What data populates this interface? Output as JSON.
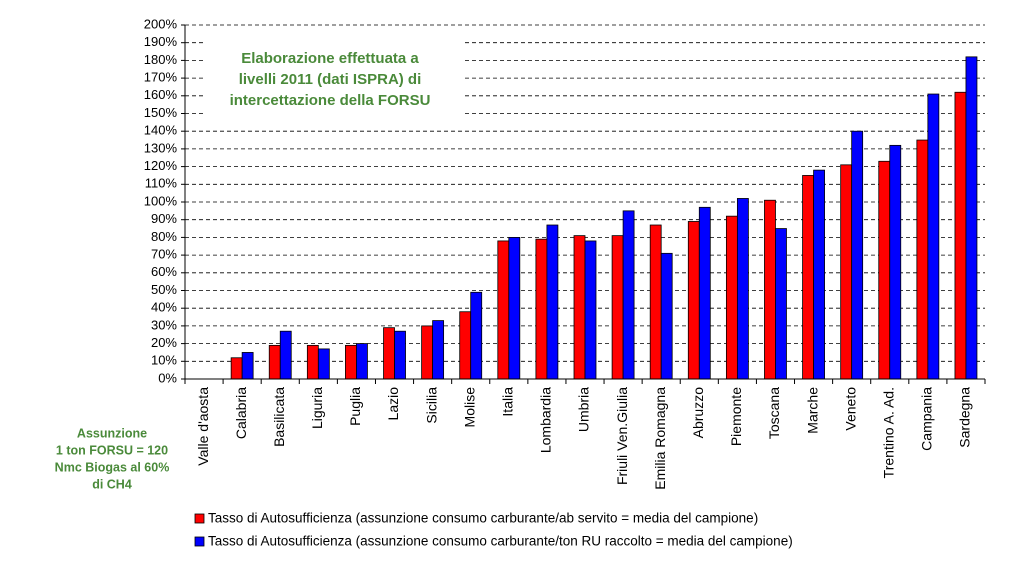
{
  "chart_data": {
    "type": "bar",
    "annotation": [
      "Elaborazione effettuata a",
      "livelli 2011 (dati ISPRA) di",
      "intercettazione della FORSU"
    ],
    "note": [
      "Assunzione",
      "1 ton FORSU = 120",
      "Nmc Biogas al 60%",
      "di CH4"
    ],
    "categories": [
      "Valle d'aosta",
      "Calabria",
      "Basilicata",
      "Liguria",
      "Puglia",
      "Lazio",
      "Sicilia",
      "Molise",
      "Italia",
      "Lombardia",
      "Umbria",
      "Friuli Ven.Giulia",
      "Emilia Romagna",
      "Abruzzo",
      "Piemonte",
      "Toscana",
      "Marche",
      "Veneto",
      "Trentino A. Ad.",
      "Campania",
      "Sardegna"
    ],
    "series": [
      {
        "name": "Tasso di Autosufficienza (assunzione consumo carburante/ab servito = media del campione)",
        "color": "#ff0000",
        "values": [
          0,
          12,
          19,
          19,
          19,
          29,
          30,
          38,
          78,
          79,
          81,
          81,
          87,
          89,
          92,
          101,
          115,
          121,
          123,
          135,
          162
        ]
      },
      {
        "name": "Tasso di Autosufficienza  (assunzione consumo carburante/ton RU raccolto = media del campione)",
        "color": "#0000ff",
        "values": [
          0,
          15,
          27,
          17,
          20,
          27,
          33,
          49,
          80,
          87,
          78,
          95,
          71,
          97,
          102,
          85,
          118,
          140,
          132,
          161,
          182
        ]
      }
    ],
    "ylim": [
      0,
      200
    ],
    "yticks": [
      {
        "value": 0,
        "label": "0%"
      },
      {
        "value": 10,
        "label": "10%"
      },
      {
        "value": 20,
        "label": "20%"
      },
      {
        "value": 30,
        "label": "30%"
      },
      {
        "value": 40,
        "label": "40%"
      },
      {
        "value": 50,
        "label": "50%"
      },
      {
        "value": 60,
        "label": "60%"
      },
      {
        "value": 70,
        "label": "70%"
      },
      {
        "value": 80,
        "label": "80%"
      },
      {
        "value": 90,
        "label": "90%"
      },
      {
        "value": 100,
        "label": "100%"
      },
      {
        "value": 110,
        "label": "110%"
      },
      {
        "value": 120,
        "label": "120%"
      },
      {
        "value": 130,
        "label": "130%"
      },
      {
        "value": 140,
        "label": "140%"
      },
      {
        "value": 150,
        "label": "150%"
      },
      {
        "value": 160,
        "label": "160%"
      },
      {
        "value": 170,
        "label": "170%"
      },
      {
        "value": 180,
        "label": "180%"
      },
      {
        "value": 190,
        "label": "190%"
      },
      {
        "value": 200,
        "label": "200%"
      }
    ],
    "grid": true
  }
}
